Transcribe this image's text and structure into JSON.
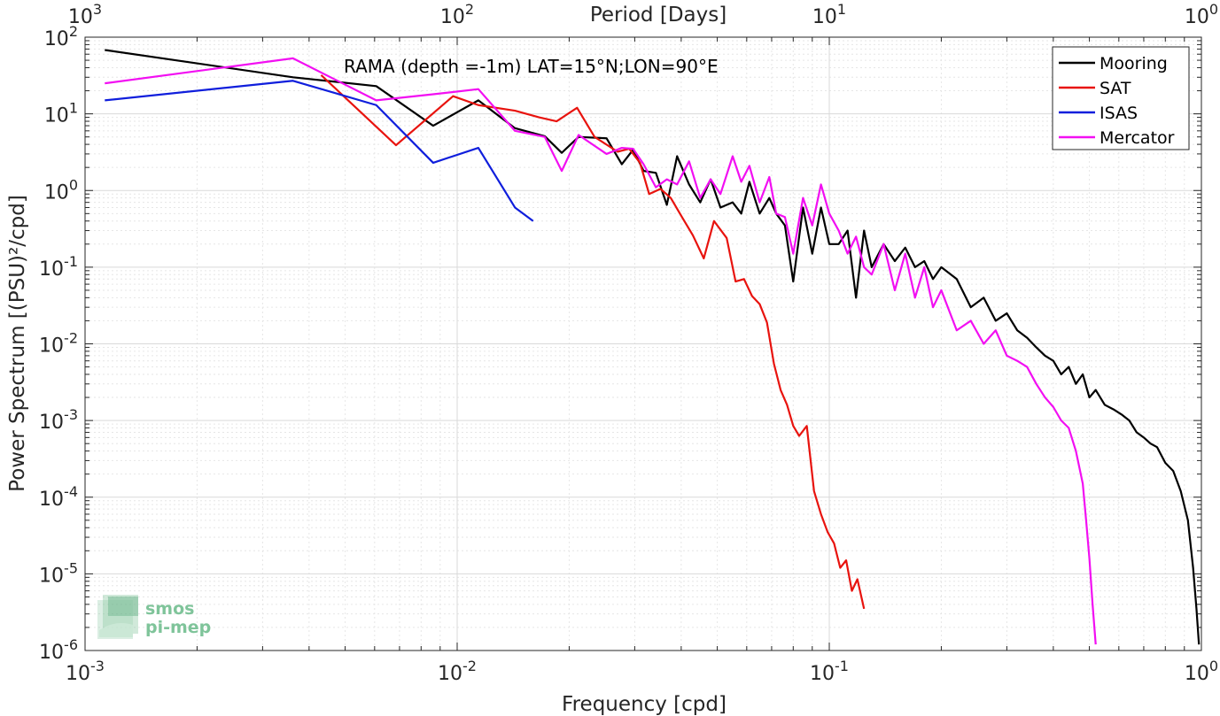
{
  "chart_data": {
    "type": "line",
    "xscale": "log",
    "yscale": "log",
    "xlim": [
      0.001,
      1
    ],
    "ylim": [
      1e-06,
      100
    ],
    "xlabel": "Frequency [cpd]",
    "ylabel": "Power Spectrum [(PSU)²/cpd]",
    "top_axis_label": "Period [Days]",
    "annotation": "RAMA (depth =-1m) LAT=15°N;LON=90°E",
    "grid": true,
    "legend_position": "top-right",
    "x_ticks": [
      {
        "value": 0.001,
        "base": "10",
        "exp": "-3"
      },
      {
        "value": 0.01,
        "base": "10",
        "exp": "-2"
      },
      {
        "value": 0.1,
        "base": "10",
        "exp": "-1"
      },
      {
        "value": 1,
        "base": "10",
        "exp": "0"
      }
    ],
    "top_ticks": [
      {
        "value": 0.001,
        "base": "10",
        "exp": "3"
      },
      {
        "value": 0.01,
        "base": "10",
        "exp": "2"
      },
      {
        "value": 0.1,
        "base": "10",
        "exp": "1"
      },
      {
        "value": 1,
        "base": "10",
        "exp": "0"
      }
    ],
    "y_ticks": [
      {
        "value": 100,
        "base": "10",
        "exp": "2"
      },
      {
        "value": 10,
        "base": "10",
        "exp": "1"
      },
      {
        "value": 1,
        "base": "10",
        "exp": "0"
      },
      {
        "value": 0.1,
        "base": "10",
        "exp": "-1"
      },
      {
        "value": 0.01,
        "base": "10",
        "exp": "-2"
      },
      {
        "value": 0.001,
        "base": "10",
        "exp": "-3"
      },
      {
        "value": 0.0001,
        "base": "10",
        "exp": "-4"
      },
      {
        "value": 1e-05,
        "base": "10",
        "exp": "-5"
      },
      {
        "value": 1e-06,
        "base": "10",
        "exp": "-6"
      }
    ],
    "series": [
      {
        "name": "Mooring",
        "color": "#000000",
        "points": [
          [
            0.00113,
            68
          ],
          [
            0.00362,
            30
          ],
          [
            0.00606,
            23
          ],
          [
            0.00862,
            7
          ],
          [
            0.0114,
            15
          ],
          [
            0.0143,
            6.5
          ],
          [
            0.0172,
            5.1
          ],
          [
            0.0191,
            3.1
          ],
          [
            0.0212,
            5
          ],
          [
            0.0252,
            4.8
          ],
          [
            0.0277,
            2.2
          ],
          [
            0.0297,
            3.4
          ],
          [
            0.0317,
            1.8
          ],
          [
            0.0342,
            1.7
          ],
          [
            0.0366,
            0.65
          ],
          [
            0.039,
            2.8
          ],
          [
            0.042,
            1.2
          ],
          [
            0.045,
            0.7
          ],
          [
            0.048,
            1.4
          ],
          [
            0.051,
            0.6
          ],
          [
            0.055,
            0.7
          ],
          [
            0.058,
            0.5
          ],
          [
            0.061,
            1.3
          ],
          [
            0.065,
            0.5
          ],
          [
            0.069,
            0.8
          ],
          [
            0.072,
            0.5
          ],
          [
            0.076,
            0.35
          ],
          [
            0.08,
            0.065
          ],
          [
            0.085,
            0.6
          ],
          [
            0.09,
            0.15
          ],
          [
            0.095,
            0.6
          ],
          [
            0.1,
            0.2
          ],
          [
            0.106,
            0.2
          ],
          [
            0.112,
            0.3
          ],
          [
            0.118,
            0.04
          ],
          [
            0.124,
            0.3
          ],
          [
            0.13,
            0.1
          ],
          [
            0.14,
            0.2
          ],
          [
            0.15,
            0.12
          ],
          [
            0.16,
            0.18
          ],
          [
            0.17,
            0.1
          ],
          [
            0.18,
            0.12
          ],
          [
            0.19,
            0.07
          ],
          [
            0.2,
            0.1
          ],
          [
            0.22,
            0.07
          ],
          [
            0.24,
            0.03
          ],
          [
            0.26,
            0.04
          ],
          [
            0.28,
            0.02
          ],
          [
            0.3,
            0.025
          ],
          [
            0.32,
            0.015
          ],
          [
            0.34,
            0.012
          ],
          [
            0.36,
            0.009
          ],
          [
            0.38,
            0.007
          ],
          [
            0.4,
            0.006
          ],
          [
            0.42,
            0.004
          ],
          [
            0.44,
            0.005
          ],
          [
            0.46,
            0.003
          ],
          [
            0.48,
            0.004
          ],
          [
            0.5,
            0.002
          ],
          [
            0.52,
            0.0025
          ],
          [
            0.55,
            0.0016
          ],
          [
            0.58,
            0.0014
          ],
          [
            0.61,
            0.0012
          ],
          [
            0.64,
            0.001
          ],
          [
            0.67,
            0.0007
          ],
          [
            0.7,
            0.0006
          ],
          [
            0.73,
            0.0005
          ],
          [
            0.76,
            0.00045
          ],
          [
            0.8,
            0.00028
          ],
          [
            0.84,
            0.00022
          ],
          [
            0.88,
            0.00012
          ],
          [
            0.92,
            5e-05
          ],
          [
            0.95,
            1.2e-05
          ],
          [
            0.97,
            3.5e-06
          ],
          [
            0.985,
            1.2e-06
          ]
        ]
      },
      {
        "name": "SAT",
        "color": "#e8130e",
        "points": [
          [
            0.00431,
            32
          ],
          [
            0.00685,
            3.9
          ],
          [
            0.00975,
            17
          ],
          [
            0.0114,
            13
          ],
          [
            0.0143,
            11
          ],
          [
            0.0166,
            9
          ],
          [
            0.0185,
            8
          ],
          [
            0.021,
            12
          ],
          [
            0.0234,
            5
          ],
          [
            0.027,
            3.2
          ],
          [
            0.029,
            3.5
          ],
          [
            0.031,
            2.3
          ],
          [
            0.0328,
            0.9
          ],
          [
            0.0352,
            1.05
          ],
          [
            0.0375,
            0.8
          ],
          [
            0.0402,
            0.45
          ],
          [
            0.043,
            0.26
          ],
          [
            0.046,
            0.13
          ],
          [
            0.049,
            0.4
          ],
          [
            0.053,
            0.24
          ],
          [
            0.056,
            0.065
          ],
          [
            0.059,
            0.07
          ],
          [
            0.062,
            0.042
          ],
          [
            0.065,
            0.033
          ],
          [
            0.068,
            0.019
          ],
          [
            0.071,
            0.0055
          ],
          [
            0.074,
            0.0025
          ],
          [
            0.077,
            0.0016
          ],
          [
            0.08,
            0.00085
          ],
          [
            0.083,
            0.00063
          ],
          [
            0.087,
            0.00085
          ],
          [
            0.091,
            0.00012
          ],
          [
            0.095,
            6e-05
          ],
          [
            0.099,
            3.5e-05
          ],
          [
            0.103,
            2.5e-05
          ],
          [
            0.107,
            1.2e-05
          ],
          [
            0.111,
            1.5e-05
          ],
          [
            0.115,
            6e-06
          ],
          [
            0.119,
            8.5e-06
          ],
          [
            0.124,
            3.5e-06
          ]
        ]
      },
      {
        "name": "ISAS",
        "color": "#0f1edc",
        "points": [
          [
            0.00113,
            15
          ],
          [
            0.00362,
            27
          ],
          [
            0.00606,
            13
          ],
          [
            0.00862,
            2.3
          ],
          [
            0.0114,
            3.6
          ],
          [
            0.0143,
            0.6
          ],
          [
            0.016,
            0.4
          ]
        ]
      },
      {
        "name": "Mercator",
        "color": "#f20ff2",
        "points": [
          [
            0.00113,
            25
          ],
          [
            0.00362,
            53
          ],
          [
            0.00606,
            15
          ],
          [
            0.00862,
            18
          ],
          [
            0.0114,
            21
          ],
          [
            0.0143,
            6
          ],
          [
            0.0172,
            5
          ],
          [
            0.0191,
            1.8
          ],
          [
            0.0212,
            5.3
          ],
          [
            0.0252,
            3
          ],
          [
            0.0277,
            3.6
          ],
          [
            0.0297,
            3.5
          ],
          [
            0.0317,
            2.2
          ],
          [
            0.0342,
            1.1
          ],
          [
            0.0366,
            1.4
          ],
          [
            0.039,
            1.2
          ],
          [
            0.042,
            2.4
          ],
          [
            0.045,
            0.8
          ],
          [
            0.048,
            1.4
          ],
          [
            0.051,
            0.9
          ],
          [
            0.055,
            2.8
          ],
          [
            0.058,
            1.3
          ],
          [
            0.061,
            2.1
          ],
          [
            0.065,
            0.7
          ],
          [
            0.069,
            1.5
          ],
          [
            0.072,
            0.5
          ],
          [
            0.076,
            0.45
          ],
          [
            0.08,
            0.15
          ],
          [
            0.085,
            0.8
          ],
          [
            0.09,
            0.35
          ],
          [
            0.095,
            1.2
          ],
          [
            0.1,
            0.5
          ],
          [
            0.106,
            0.3
          ],
          [
            0.112,
            0.15
          ],
          [
            0.118,
            0.25
          ],
          [
            0.124,
            0.1
          ],
          [
            0.13,
            0.08
          ],
          [
            0.14,
            0.2
          ],
          [
            0.15,
            0.05
          ],
          [
            0.16,
            0.15
          ],
          [
            0.17,
            0.04
          ],
          [
            0.18,
            0.1
          ],
          [
            0.19,
            0.03
          ],
          [
            0.2,
            0.05
          ],
          [
            0.22,
            0.015
          ],
          [
            0.24,
            0.02
          ],
          [
            0.26,
            0.01
          ],
          [
            0.28,
            0.015
          ],
          [
            0.3,
            0.007
          ],
          [
            0.32,
            0.006
          ],
          [
            0.34,
            0.005
          ],
          [
            0.36,
            0.003
          ],
          [
            0.38,
            0.002
          ],
          [
            0.4,
            0.0015
          ],
          [
            0.42,
            0.001
          ],
          [
            0.44,
            0.0008
          ],
          [
            0.46,
            0.0004
          ],
          [
            0.48,
            0.00015
          ],
          [
            0.49,
            5e-05
          ],
          [
            0.5,
            1.6e-05
          ],
          [
            0.51,
            4e-06
          ],
          [
            0.52,
            1.2e-06
          ]
        ]
      }
    ]
  },
  "logo": {
    "line1": "smos",
    "line2": "pi-mep",
    "color": "#7fc49a"
  }
}
